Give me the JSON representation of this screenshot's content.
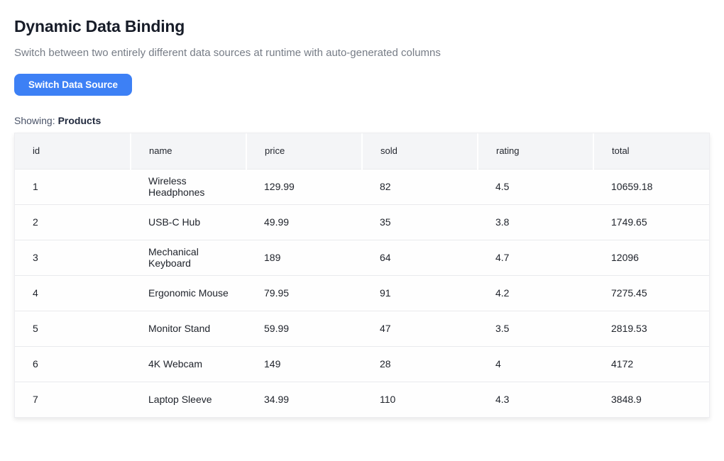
{
  "page": {
    "title": "Dynamic Data Binding",
    "subtitle": "Switch between two entirely different data sources at runtime with auto-generated columns",
    "button_label": "Switch Data Source",
    "showing_label": "Showing:",
    "showing_value": "Products"
  },
  "colors": {
    "accent_blue": "#3d80f5",
    "title_text": "#171c28",
    "subtitle_text": "#767c86",
    "header_bg": "#f4f5f7",
    "row_border": "#e9eaed"
  },
  "table": {
    "columns": [
      "id",
      "name",
      "price",
      "sold",
      "rating",
      "total"
    ],
    "rows": [
      [
        "1",
        "Wireless Headphones",
        "129.99",
        "82",
        "4.5",
        "10659.18"
      ],
      [
        "2",
        "USB-C Hub",
        "49.99",
        "35",
        "3.8",
        "1749.65"
      ],
      [
        "3",
        "Mechanical Keyboard",
        "189",
        "64",
        "4.7",
        "12096"
      ],
      [
        "4",
        "Ergonomic Mouse",
        "79.95",
        "91",
        "4.2",
        "7275.45"
      ],
      [
        "5",
        "Monitor Stand",
        "59.99",
        "47",
        "3.5",
        "2819.53"
      ],
      [
        "6",
        "4K Webcam",
        "149",
        "28",
        "4",
        "4172"
      ],
      [
        "7",
        "Laptop Sleeve",
        "34.99",
        "110",
        "4.3",
        "3848.9"
      ]
    ]
  }
}
